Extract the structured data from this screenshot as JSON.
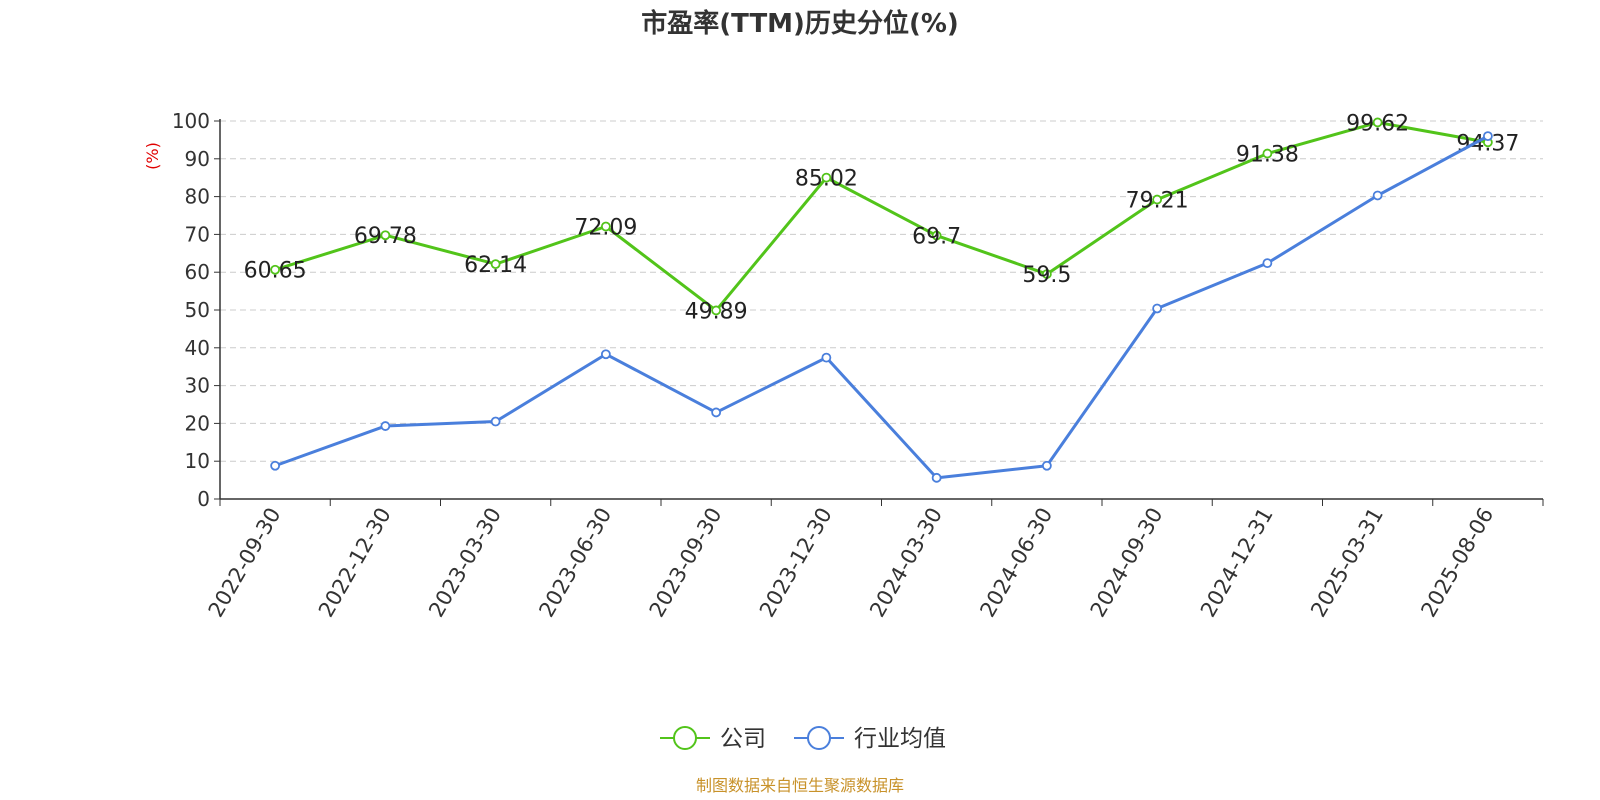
{
  "chart_data": {
    "type": "line",
    "title": "市盈率(TTM)历史分位(%)",
    "ylabel": "(%)",
    "xlabel": "",
    "ylim": [
      0,
      100
    ],
    "yticks": [
      0,
      10,
      20,
      30,
      40,
      50,
      60,
      70,
      80,
      90,
      100
    ],
    "grid": true,
    "legend_position": "bottom-center",
    "categories": [
      "2022-09-30",
      "2022-12-30",
      "2023-03-30",
      "2023-06-30",
      "2023-09-30",
      "2023-12-30",
      "2024-03-30",
      "2024-06-30",
      "2024-09-30",
      "2024-12-31",
      "2025-03-31",
      "2025-08-06"
    ],
    "series": [
      {
        "name": "公司",
        "color": "#52c41a",
        "show_labels": true,
        "values": [
          60.65,
          69.78,
          62.14,
          72.09,
          49.89,
          85.02,
          69.7,
          59.5,
          79.21,
          91.38,
          99.62,
          94.37
        ],
        "labels": [
          "60.65",
          "69.78",
          "62.14",
          "72.09",
          "49.89",
          "85.02",
          "69.7",
          "59.5",
          "79.21",
          "91.38",
          "99.62",
          "94.37"
        ]
      },
      {
        "name": "行业均值",
        "color": "#4a7fdc",
        "show_labels": false,
        "values": [
          8.8,
          19.3,
          20.5,
          38.3,
          22.9,
          37.4,
          5.6,
          8.8,
          50.4,
          62.4,
          80.3,
          96.0
        ]
      }
    ]
  },
  "footer": "制图数据来自恒生聚源数据库"
}
